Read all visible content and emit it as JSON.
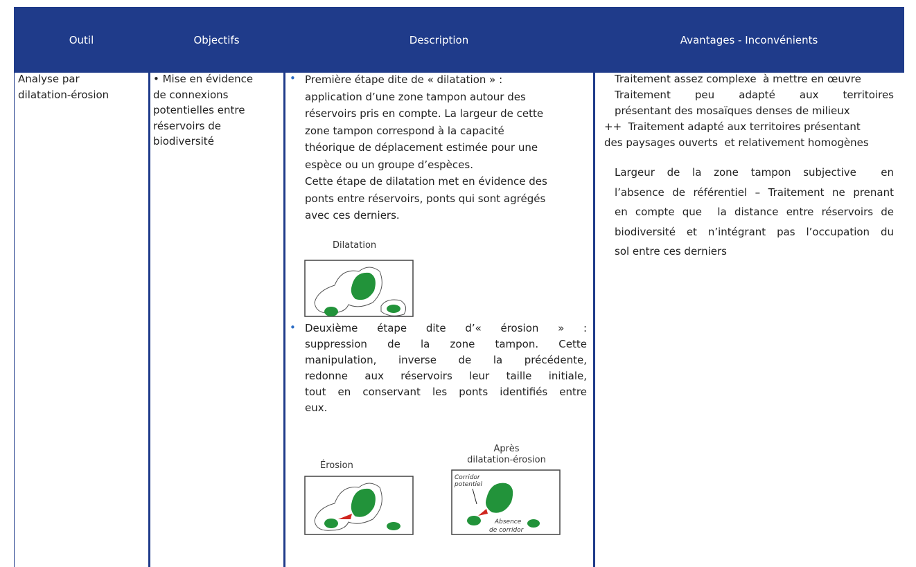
{
  "header": {
    "columns": [
      "Outil",
      "Objectifs",
      "Description",
      "Avantages - Inconvénients"
    ]
  },
  "row": {
    "outil": [
      "Analyse par",
      "dilatation-érosion"
    ],
    "objectifs": [
      "• Mise en évidence",
      "de connexions",
      "potentielles entre",
      "réservoirs de",
      "biodiversité"
    ],
    "description": {
      "step1": [
        "Première étape dite de « dilatation » :",
        "application d’une zone tampon autour des",
        "réservoirs pris en compte. La largeur de cette",
        "zone tampon correspond à la capacité",
        "théorique de déplacement estimée pour une",
        "espèce ou un groupe d’espèces.",
        "Cette étape de dilatation met en évidence des",
        "ponts entre réservoirs, ponts qui sont agrégés",
        "avec ces derniers."
      ],
      "figure1": {
        "title": "Dilatation"
      },
      "step2": [
        "Deuxième étape dite d’« érosion » :",
        "suppression de la zone tampon. Cette",
        "manipulation, inverse de la précédente,",
        "redonne aux réservoirs leur taille initiale,",
        "tout en conservant les ponts identifiés entre",
        "eux."
      ],
      "figure2": {
        "title": "Érosion"
      },
      "figure3": {
        "title": [
          "Après",
          "dilatation-érosion"
        ],
        "label1": [
          "Corridor",
          "potentiel"
        ],
        "label2": [
          "Absence",
          "de corridor"
        ]
      }
    },
    "avantages": {
      "group1": [
        "Traitement assez complexe  à mettre en œuvre",
        "Traitement peu adapté aux territoires",
        "présentant des mosaïques denses de milieux",
        "++  Traitement adapté aux territoires présentant",
        "des paysages ouverts  et relativement homogènes"
      ],
      "group2": [
        "Largeur de la zone tampon subjective  en",
        "l’absence de référentiel – Traitement ne prenant",
        "en compte que  la distance entre réservoirs de",
        "biodiversité et n’intégrant pas l’occupation du",
        "sol entre ces derniers"
      ]
    }
  }
}
